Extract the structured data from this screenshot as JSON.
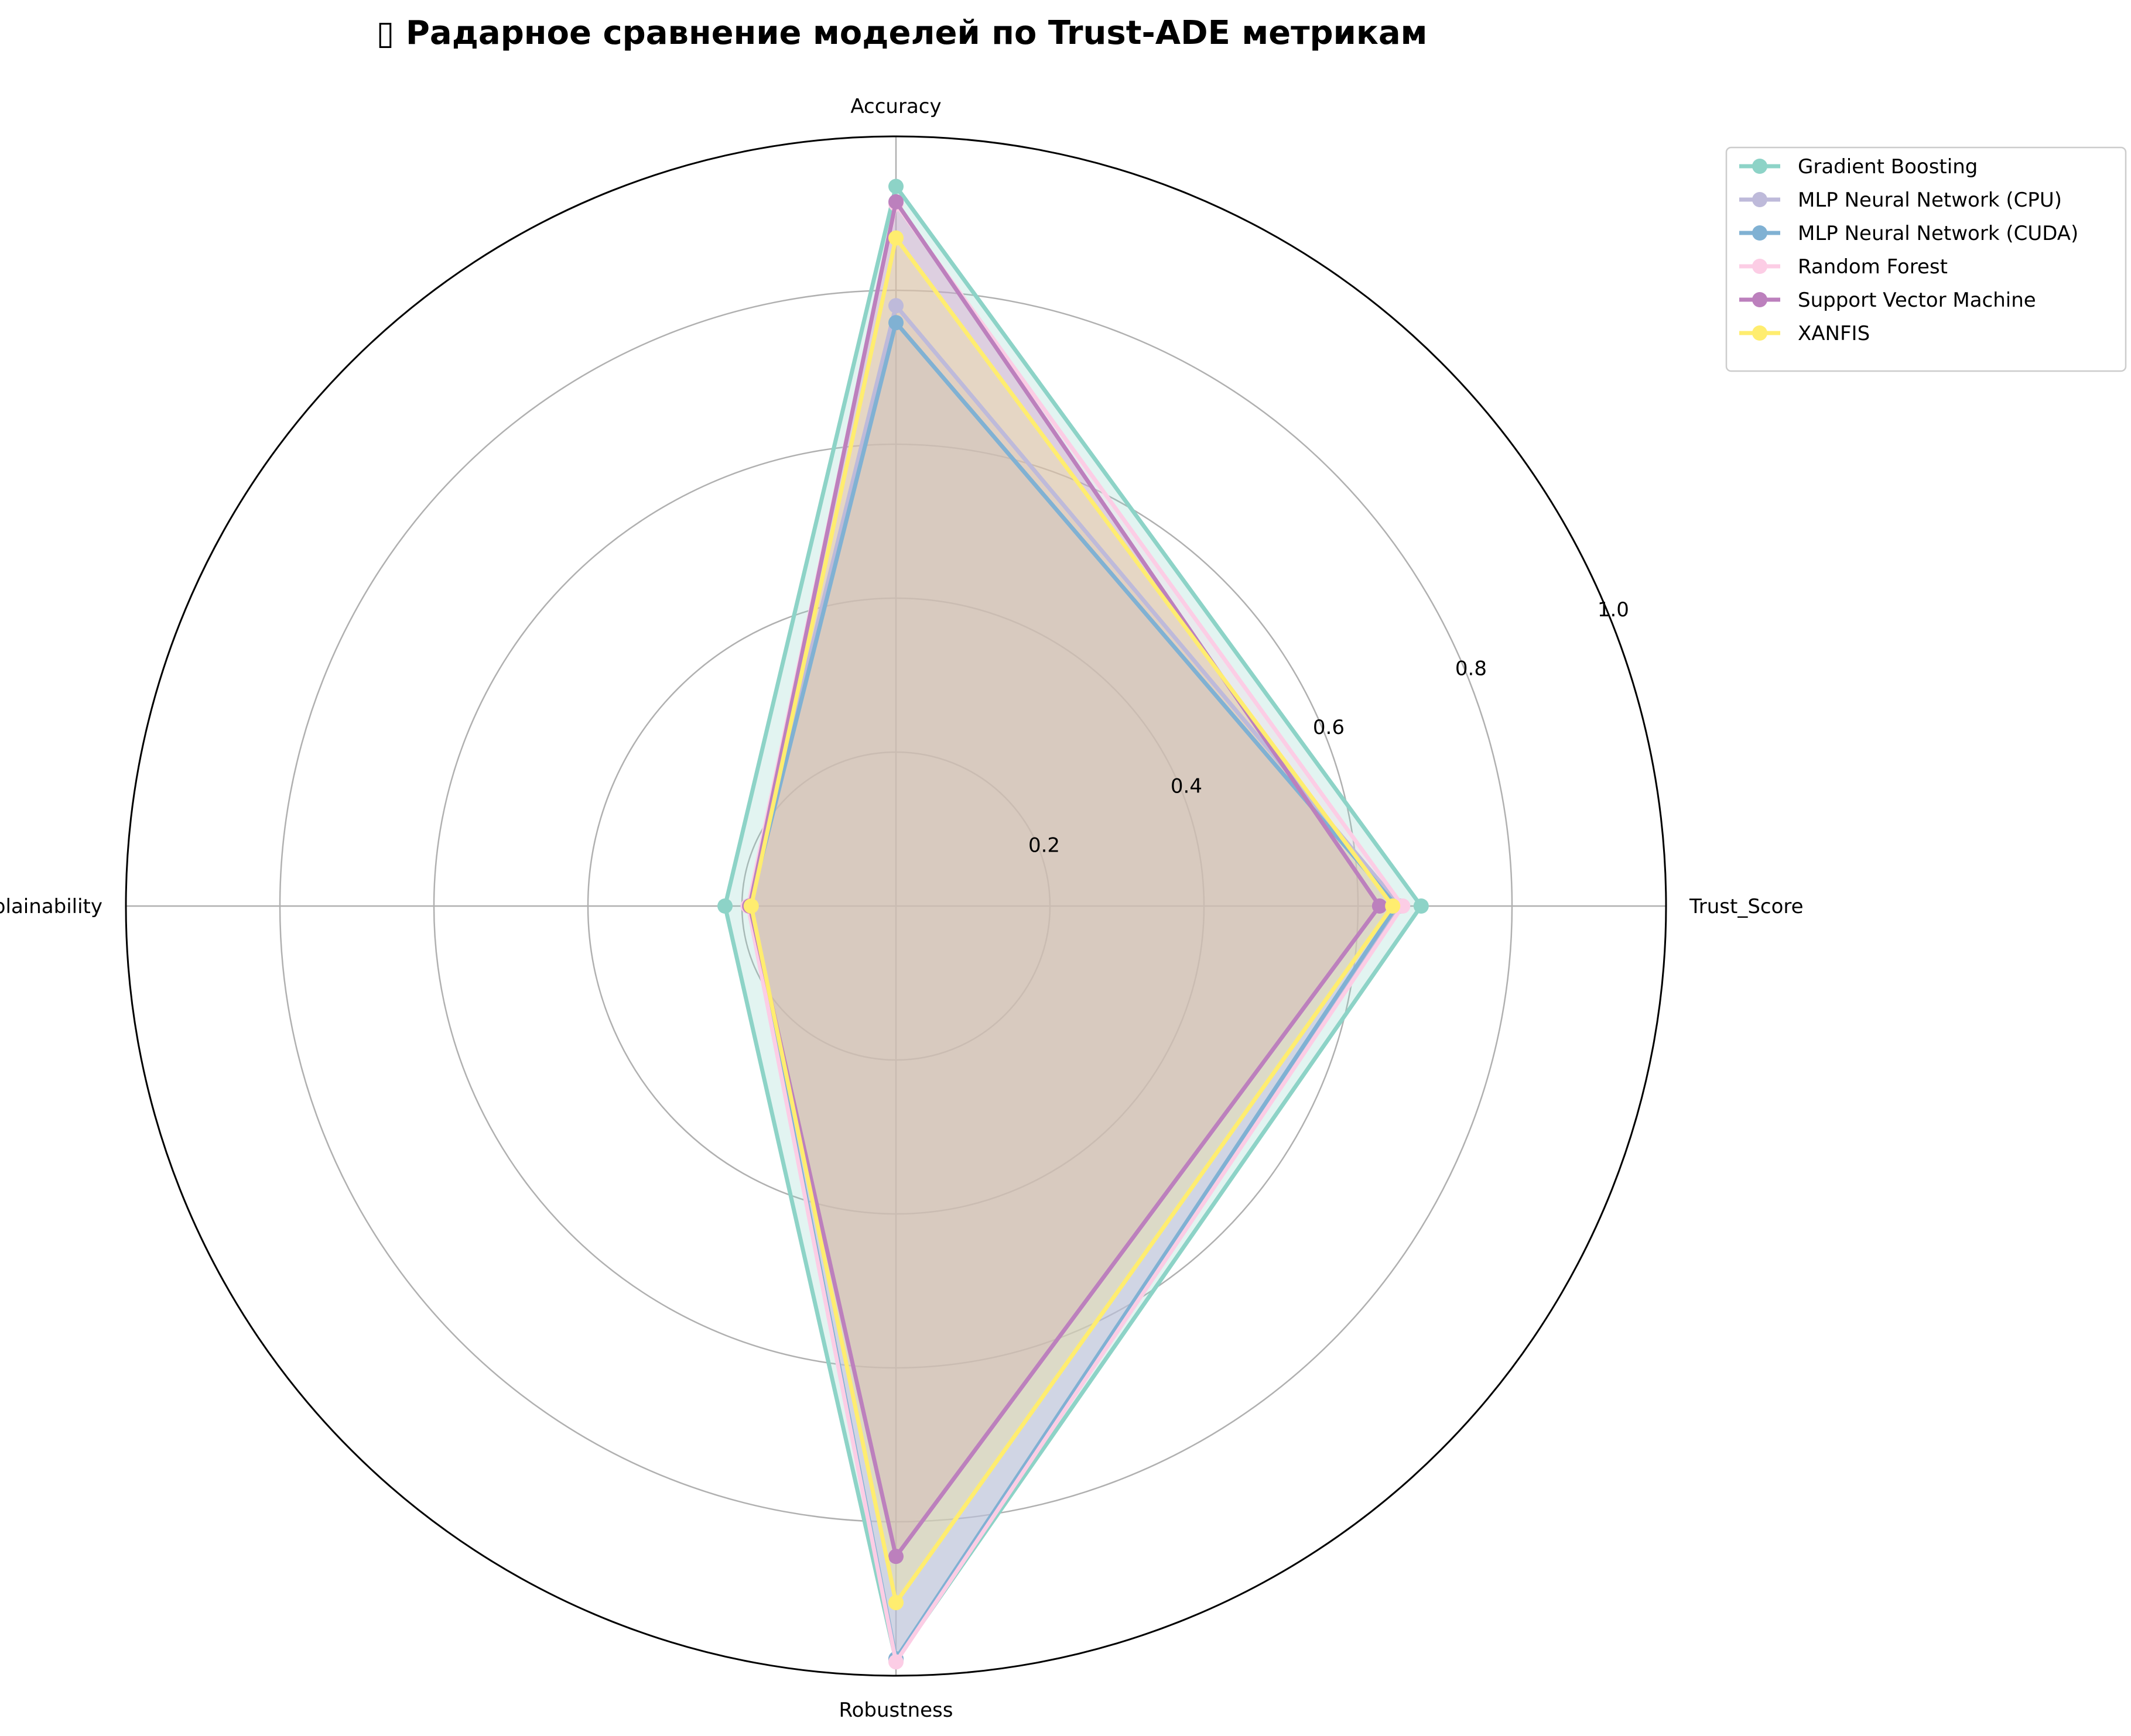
{
  "chart_data": {
    "type": "radar",
    "title": "▯ Радарное сравнение моделей по Trust-ADE метрикам",
    "axes": [
      "Accuracy",
      "Trust_Score",
      "Robustness",
      "Explainability"
    ],
    "rlim": [
      0,
      1.0
    ],
    "r_ticks": [
      0.2,
      0.4,
      0.6,
      0.8,
      1.0
    ],
    "r_tick_labels": [
      "0.2",
      "0.4",
      "0.6",
      "0.8",
      "1.0"
    ],
    "grid": true,
    "legend_position": "upper-right-outside",
    "series": [
      {
        "name": "Gradient Boosting",
        "color": "#8dd3c7",
        "values": [
          0.935,
          0.682,
          0.98,
          0.222
        ]
      },
      {
        "name": "MLP Neural Network (CPU)",
        "color": "#bebada",
        "values": [
          0.78,
          0.655,
          0.978,
          0.192
        ]
      },
      {
        "name": "MLP Neural Network (CUDA)",
        "color": "#80b1d3",
        "values": [
          0.758,
          0.65,
          0.978,
          0.19
        ]
      },
      {
        "name": "Random Forest",
        "color": "#fccde5",
        "values": [
          0.912,
          0.658,
          0.982,
          0.192
        ]
      },
      {
        "name": "Support Vector Machine",
        "color": "#bc80bd",
        "values": [
          0.915,
          0.628,
          0.845,
          0.19
        ]
      },
      {
        "name": "XANFIS",
        "color": "#ffed6f",
        "values": [
          0.868,
          0.645,
          0.905,
          0.188
        ]
      }
    ]
  }
}
